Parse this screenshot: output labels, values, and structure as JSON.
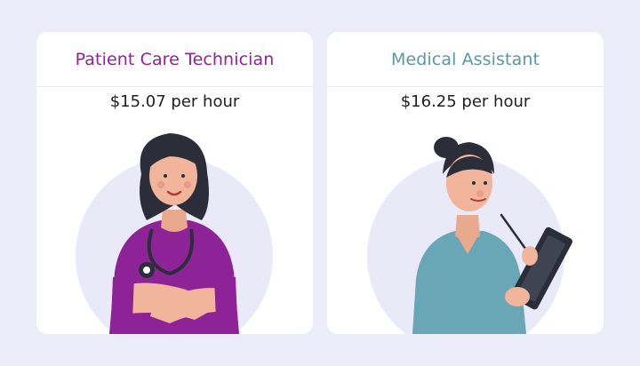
{
  "colors": {
    "background": "#ecebf8",
    "card": "#ffffff",
    "circle": "#eae9f7",
    "technician_accent": "#8e2398",
    "assistant_accent": "#5b97a6"
  },
  "cards": [
    {
      "title": "Patient Care Technician",
      "wage": "$15.07 per hour",
      "illustration": "patient-care-technician-illustration"
    },
    {
      "title": "Medical Assistant",
      "wage": "$16.25 per hour",
      "illustration": "medical-assistant-illustration"
    }
  ]
}
